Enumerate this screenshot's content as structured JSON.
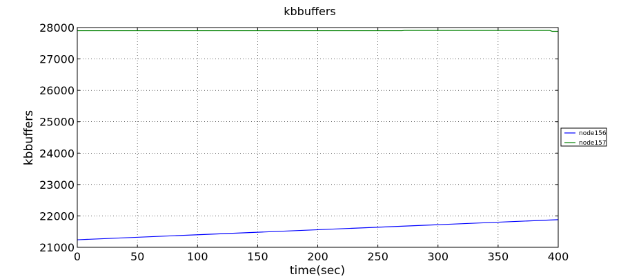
{
  "chart_data": {
    "type": "line",
    "title": "kbbuffers",
    "xlabel": "time(sec)",
    "ylabel": "kbbuffers",
    "xlim": [
      0,
      400
    ],
    "ylim": [
      21000,
      28000
    ],
    "xticks": [
      0,
      50,
      100,
      150,
      200,
      250,
      300,
      350,
      400
    ],
    "yticks": [
      21000,
      22000,
      23000,
      24000,
      25000,
      26000,
      27000,
      28000
    ],
    "grid": true,
    "legend_position": "outside-right",
    "series": [
      {
        "name": "node156",
        "color": "#0000ff",
        "x": [
          0,
          400
        ],
        "y": [
          21240,
          21880
        ]
      },
      {
        "name": "node157",
        "color": "#008000",
        "x": [
          0,
          270,
          272,
          393,
          395,
          400
        ],
        "y": [
          27900,
          27900,
          27908,
          27908,
          27880,
          27880
        ]
      }
    ]
  }
}
